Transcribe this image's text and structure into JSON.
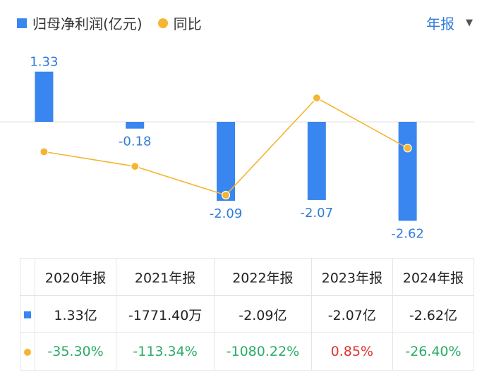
{
  "legend": {
    "bar_label": "归母净利润(亿元)",
    "line_label": "同比"
  },
  "period_selector": {
    "label": "年报"
  },
  "colors": {
    "bar": "#3a86f0",
    "line": "#f5b531",
    "label_blue": "#2f7bd9",
    "positive": "#e03131",
    "negative": "#2bab68"
  },
  "chart_data": {
    "type": "bar",
    "categories": [
      "2020年报",
      "2021年报",
      "2022年报",
      "2023年报",
      "2024年报"
    ],
    "series": [
      {
        "name": "归母净利润(亿元)",
        "type": "bar",
        "values": [
          1.33,
          -0.18,
          -2.09,
          -2.07,
          -2.62
        ],
        "labels": [
          "1.33",
          "-0.18",
          "-2.09",
          "-2.07",
          "-2.62"
        ]
      },
      {
        "name": "同比",
        "type": "line",
        "values": [
          -35.3,
          -113.34,
          -1080.22,
          0.85,
          -26.4
        ]
      }
    ],
    "legend_position": "top-left"
  },
  "table": {
    "headers": [
      "2020年报",
      "2021年报",
      "2022年报",
      "2023年报",
      "2024年报"
    ],
    "profit_row": [
      "1.33亿",
      "-1771.40万",
      "-2.09亿",
      "-2.07亿",
      "-2.62亿"
    ],
    "yoy_row": [
      "-35.30%",
      "-113.34%",
      "-1080.22%",
      "0.85%",
      "-26.40%"
    ]
  }
}
